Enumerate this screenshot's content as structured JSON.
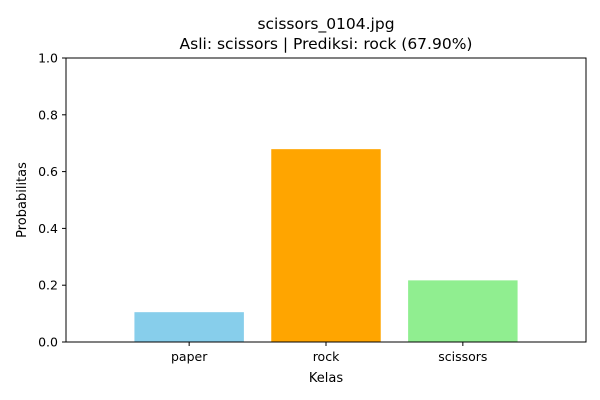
{
  "chart_data": {
    "type": "bar",
    "title": "scissors_0104.jpg",
    "subtitle": "Asli: scissors | Prediksi: rock (67.90%)",
    "xlabel": "Kelas",
    "ylabel": "Probabilitas",
    "categories": [
      "paper",
      "rock",
      "scissors"
    ],
    "values": [
      0.105,
      0.679,
      0.217
    ],
    "colors": [
      "#87ceeb",
      "#ffa500",
      "#90ee90"
    ],
    "ylim": [
      0,
      1.0
    ],
    "yticks": [
      0.0,
      0.2,
      0.4,
      0.6,
      0.8,
      1.0
    ],
    "ytick_labels": [
      "0.0",
      "0.2",
      "0.4",
      "0.6",
      "0.8",
      "1.0"
    ],
    "grid": false,
    "legend": "none"
  }
}
